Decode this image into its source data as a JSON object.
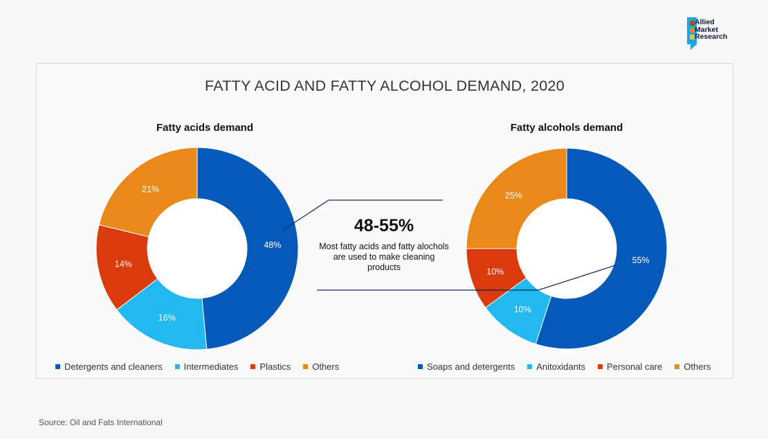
{
  "brand": {
    "line1": "Allied",
    "line2": "Market",
    "line3": "Research"
  },
  "title": "FATTY ACID AND FATTY ALCOHOL DEMAND, 2020",
  "callout": {
    "headline": "48-55%",
    "text": "Most fatty acids and fatty alochols are used to make cleaning products"
  },
  "source": "Source: Oil and Fats International",
  "colors": {
    "blue": "#0659b8",
    "cyan": "#22b8f0",
    "red": "#d93b0c",
    "orange": "#e8891a"
  },
  "chart_data": [
    {
      "type": "pie",
      "title": "Fatty acids demand",
      "series": [
        {
          "name": "Detergents and cleaners",
          "value": 48,
          "label": "48%",
          "color": "#0659b8"
        },
        {
          "name": "Intermediates",
          "value": 16,
          "label": "16%",
          "color": "#22b8f0"
        },
        {
          "name": "Plastics",
          "value": 14,
          "label": "14%",
          "color": "#d93b0c"
        },
        {
          "name": "Others",
          "value": 21,
          "label": "21%",
          "color": "#e8891a"
        }
      ]
    },
    {
      "type": "pie",
      "title": "Fatty alcohols demand",
      "series": [
        {
          "name": "Soaps and detergents",
          "value": 55,
          "label": "55%",
          "color": "#0659b8"
        },
        {
          "name": "Anitoxidants",
          "value": 10,
          "label": "10%",
          "color": "#22b8f0"
        },
        {
          "name": "Personal care",
          "value": 10,
          "label": "10%",
          "color": "#d93b0c"
        },
        {
          "name": "Others",
          "value": 25,
          "label": "25%",
          "color": "#e8891a"
        }
      ]
    }
  ]
}
